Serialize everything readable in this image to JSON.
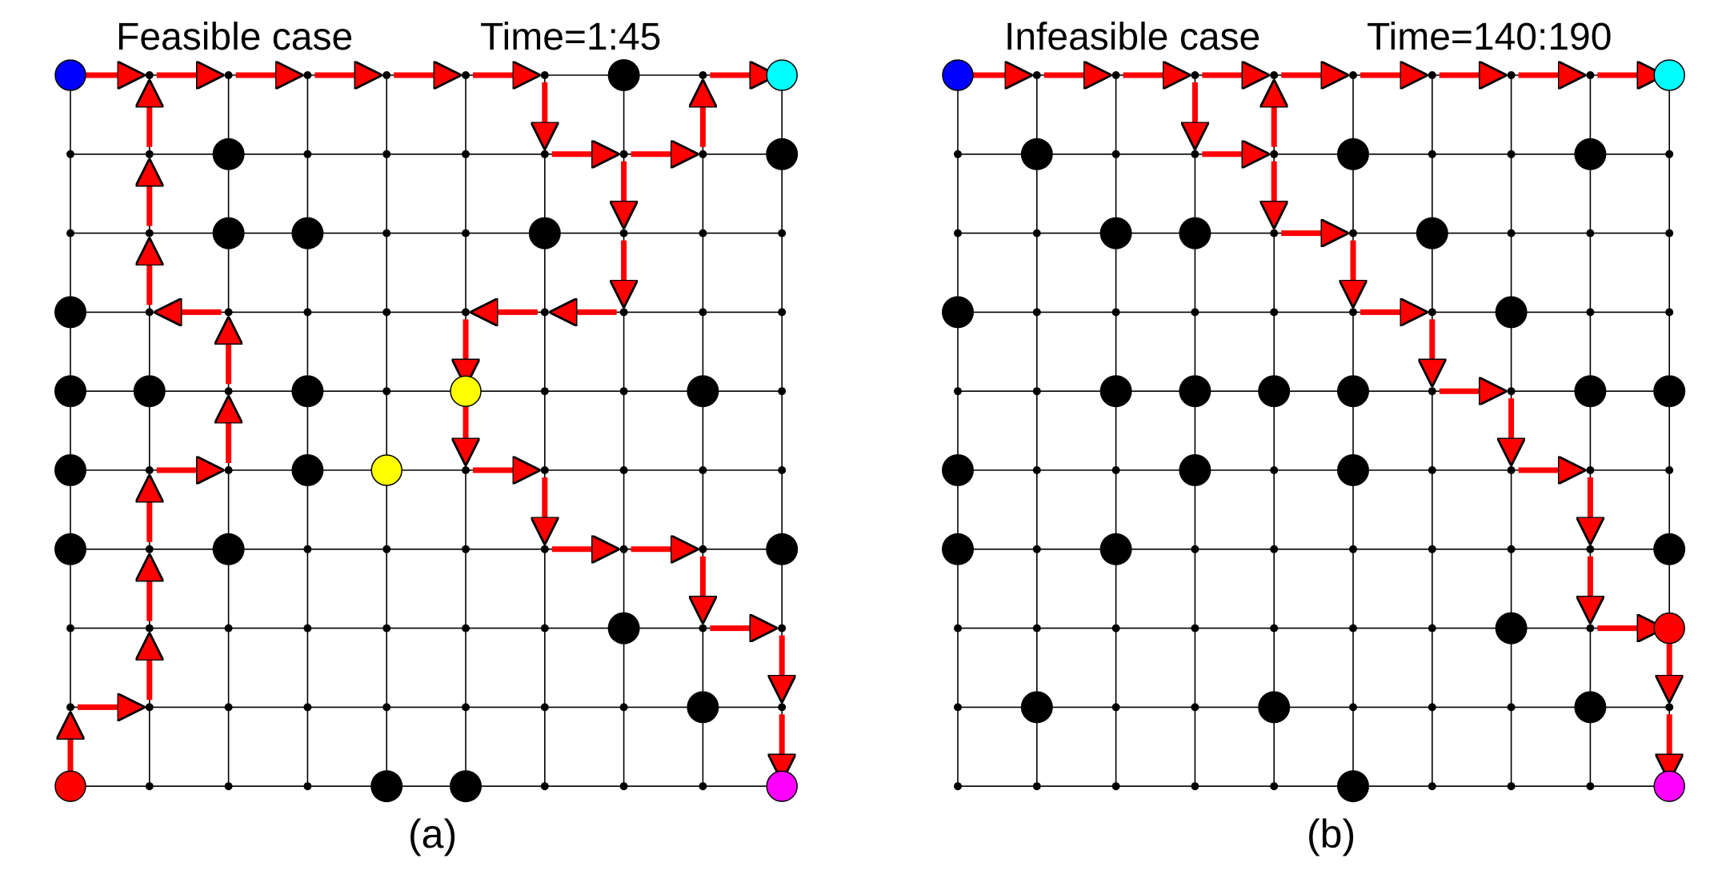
{
  "figure": {
    "panels": [
      {
        "id": "a",
        "title": "Feasible case",
        "time": "Time=1:45",
        "caption": "(a)",
        "nodes": {
          "start_top_left": "#0000ff",
          "goal_top_right": "#00ffff",
          "start_bottom_left": "#ff0000",
          "goal_bottom_right": "#ff00ff"
        },
        "obstacles": [
          [
            7,
            0
          ],
          [
            2,
            1
          ],
          [
            9,
            1
          ],
          [
            2,
            2
          ],
          [
            3,
            2
          ],
          [
            6,
            2
          ],
          [
            0,
            3
          ],
          [
            0,
            4
          ],
          [
            1,
            4
          ],
          [
            3,
            4
          ],
          [
            8,
            4
          ],
          [
            0,
            5
          ],
          [
            3,
            5
          ],
          [
            0,
            6
          ],
          [
            2,
            6
          ],
          [
            9,
            6
          ],
          [
            7,
            7
          ],
          [
            8,
            8
          ],
          [
            4,
            9
          ],
          [
            5,
            9
          ]
        ],
        "highlight_nodes": [
          [
            5,
            4
          ],
          [
            4,
            5
          ]
        ],
        "highlight_color": "#ffff00",
        "paths": [
          {
            "color": "#ff0000",
            "points": [
              [
                0,
                9
              ],
              [
                0,
                8
              ],
              [
                1,
                8
              ],
              [
                1,
                7
              ],
              [
                1,
                6
              ],
              [
                1,
                5
              ],
              [
                2,
                5
              ],
              [
                2,
                4
              ],
              [
                2,
                3
              ],
              [
                1,
                3
              ],
              [
                1,
                2
              ],
              [
                1,
                1
              ],
              [
                1,
                0
              ],
              [
                2,
                0
              ],
              [
                3,
                0
              ],
              [
                4,
                0
              ],
              [
                5,
                0
              ],
              [
                6,
                0
              ],
              [
                6,
                1
              ],
              [
                7,
                1
              ],
              [
                8,
                1
              ],
              [
                8,
                0
              ],
              [
                9,
                0
              ]
            ]
          },
          {
            "color": "#ff0000",
            "points": [
              [
                0,
                0
              ],
              [
                1,
                0
              ]
            ]
          },
          {
            "color": "#ff0000",
            "points": [
              [
                7,
                1
              ],
              [
                7,
                2
              ],
              [
                7,
                3
              ],
              [
                6,
                3
              ],
              [
                5,
                3
              ],
              [
                5,
                4
              ],
              [
                5,
                5
              ],
              [
                6,
                5
              ],
              [
                6,
                6
              ],
              [
                7,
                6
              ],
              [
                8,
                6
              ],
              [
                8,
                7
              ],
              [
                9,
                7
              ],
              [
                9,
                8
              ],
              [
                9,
                9
              ]
            ]
          }
        ]
      },
      {
        "id": "b",
        "title": "Infeasible case",
        "time": "Time=140:190",
        "caption": "(b)",
        "nodes": {
          "start_top_left": "#0000ff",
          "goal_top_right": "#00ffff",
          "start_bottom_right": "#ff0000",
          "goal_bottom_right": "#ff00ff"
        },
        "obstacles": [
          [
            1,
            1
          ],
          [
            5,
            1
          ],
          [
            8,
            1
          ],
          [
            2,
            2
          ],
          [
            3,
            2
          ],
          [
            6,
            2
          ],
          [
            0,
            3
          ],
          [
            7,
            3
          ],
          [
            2,
            4
          ],
          [
            3,
            4
          ],
          [
            4,
            4
          ],
          [
            5,
            4
          ],
          [
            8,
            4
          ],
          [
            9,
            4
          ],
          [
            0,
            5
          ],
          [
            3,
            5
          ],
          [
            5,
            5
          ],
          [
            0,
            6
          ],
          [
            2,
            6
          ],
          [
            9,
            6
          ],
          [
            7,
            7
          ],
          [
            1,
            8
          ],
          [
            4,
            8
          ],
          [
            8,
            8
          ],
          [
            5,
            9
          ]
        ],
        "highlight_nodes": [],
        "paths": [
          {
            "color": "#ff0000",
            "points": [
              [
                0,
                0
              ],
              [
                1,
                0
              ],
              [
                2,
                0
              ],
              [
                3,
                0
              ],
              [
                4,
                0
              ],
              [
                5,
                0
              ],
              [
                6,
                0
              ],
              [
                7,
                0
              ],
              [
                8,
                0
              ],
              [
                9,
                0
              ]
            ]
          },
          {
            "color": "#ff0000",
            "points": [
              [
                3,
                0
              ],
              [
                3,
                1
              ],
              [
                4,
                1
              ],
              [
                4,
                0
              ]
            ]
          },
          {
            "color": "#ff0000",
            "points": [
              [
                4,
                1
              ],
              [
                4,
                2
              ],
              [
                5,
                2
              ],
              [
                5,
                3
              ],
              [
                6,
                3
              ],
              [
                6,
                4
              ],
              [
                7,
                4
              ],
              [
                7,
                5
              ],
              [
                8,
                5
              ],
              [
                8,
                6
              ],
              [
                8,
                7
              ],
              [
                9,
                7
              ],
              [
                9,
                8
              ],
              [
                9,
                9
              ]
            ]
          }
        ]
      }
    ]
  }
}
